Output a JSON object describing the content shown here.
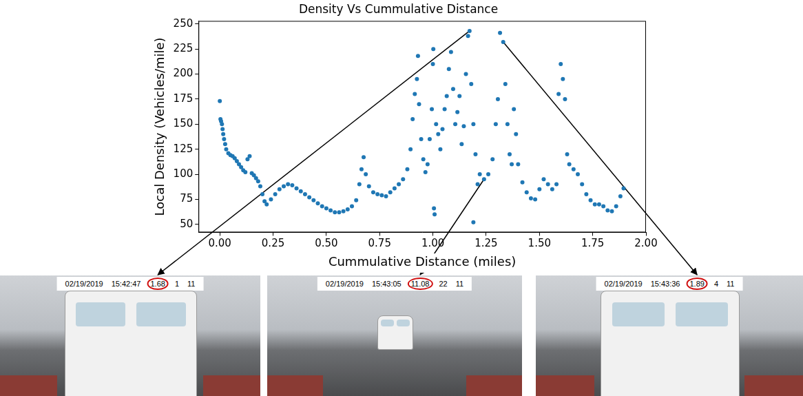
{
  "chart_data": {
    "type": "scatter",
    "title": "Density Vs Cummulative Distance",
    "x_label": "Cummulative Distance (miles)",
    "y_label": "Local Density (Vehicles/mile)",
    "color": "#1f77b4",
    "marker": "circle",
    "grid": false,
    "xlim": [
      -0.1,
      2.0
    ],
    "ylim": [
      42,
      253
    ],
    "xticks": [
      {
        "value": 0,
        "label": "0.00"
      },
      {
        "value": 0.25,
        "label": "0.25"
      },
      {
        "value": 0.5,
        "label": "0.50"
      },
      {
        "value": 0.75,
        "label": "0.75"
      },
      {
        "value": 1,
        "label": "1.00"
      },
      {
        "value": 1.25,
        "label": "1.25"
      },
      {
        "value": 1.5,
        "label": "1.50"
      },
      {
        "value": 1.75,
        "label": "1.75"
      },
      {
        "value": 2,
        "label": "2.00"
      }
    ],
    "yticks": [
      50,
      75,
      100,
      125,
      150,
      175,
      200,
      225,
      250
    ],
    "x": [
      0.0,
      0.003,
      0.006,
      0.01,
      0.013,
      0.016,
      0.02,
      0.025,
      0.03,
      0.04,
      0.05,
      0.06,
      0.07,
      0.08,
      0.09,
      0.1,
      0.11,
      0.12,
      0.13,
      0.14,
      0.15,
      0.16,
      0.17,
      0.18,
      0.19,
      0.2,
      0.21,
      0.22,
      0.24,
      0.26,
      0.28,
      0.3,
      0.32,
      0.34,
      0.36,
      0.38,
      0.4,
      0.42,
      0.44,
      0.46,
      0.48,
      0.5,
      0.52,
      0.54,
      0.56,
      0.58,
      0.6,
      0.62,
      0.64,
      0.655,
      0.665,
      0.675,
      0.685,
      0.7,
      0.72,
      0.74,
      0.76,
      0.78,
      0.8,
      0.82,
      0.84,
      0.86,
      0.88,
      0.895,
      0.905,
      0.915,
      0.925,
      0.93,
      0.935,
      0.945,
      0.955,
      0.965,
      0.975,
      0.985,
      0.995,
      1.0,
      1.002,
      1.005,
      1.008,
      1.015,
      1.025,
      1.035,
      1.045,
      1.055,
      1.065,
      1.075,
      1.085,
      1.095,
      1.105,
      1.115,
      1.125,
      1.135,
      1.145,
      1.155,
      1.165,
      1.172,
      1.18,
      1.19,
      1.19,
      1.2,
      1.21,
      1.22,
      1.24,
      1.26,
      1.28,
      1.295,
      1.305,
      1.315,
      1.33,
      1.34,
      1.35,
      1.36,
      1.37,
      1.38,
      1.39,
      1.4,
      1.42,
      1.44,
      1.46,
      1.48,
      1.5,
      1.52,
      1.54,
      1.56,
      1.58,
      1.59,
      1.6,
      1.61,
      1.62,
      1.63,
      1.64,
      1.66,
      1.68,
      1.7,
      1.72,
      1.74,
      1.76,
      1.78,
      1.8,
      1.82,
      1.84,
      1.86,
      1.88,
      1.895
    ],
    "values": [
      173,
      155,
      153,
      150,
      145,
      140,
      135,
      130,
      125,
      121,
      119,
      118,
      116,
      113,
      110,
      107,
      104,
      102,
      115,
      118,
      101,
      99,
      96,
      93,
      88,
      80,
      73,
      70,
      75,
      80,
      85,
      88,
      90,
      89,
      86,
      83,
      80,
      77,
      74,
      71,
      68,
      66,
      64,
      62,
      62,
      63,
      65,
      68,
      74,
      90,
      105,
      117,
      100,
      88,
      82,
      80,
      79,
      78,
      82,
      86,
      90,
      95,
      105,
      125,
      155,
      180,
      195,
      218,
      170,
      135,
      115,
      102,
      110,
      135,
      165,
      210,
      225,
      66,
      60,
      150,
      140,
      125,
      145,
      165,
      178,
      205,
      222,
      185,
      150,
      162,
      178,
      130,
      148,
      200,
      238,
      243,
      190,
      52,
      150,
      120,
      90,
      100,
      95,
      100,
      115,
      150,
      175,
      241,
      232,
      190,
      150,
      120,
      110,
      165,
      140,
      110,
      92,
      82,
      76,
      75,
      85,
      95,
      90,
      85,
      90,
      180,
      210,
      195,
      175,
      120,
      110,
      105,
      100,
      90,
      80,
      74,
      70,
      70,
      68,
      64,
      63,
      68,
      78,
      86
    ],
    "annotations": [
      {
        "x": 1.172,
        "y": 243,
        "text": [
          "02/19/2019",
          "15:42:47",
          "1.68",
          "1",
          "11"
        ]
      },
      {
        "x": 1.24,
        "y": 95,
        "text": [
          "02/19/2019",
          "15:43:05",
          "11.08",
          "22",
          "11"
        ]
      },
      {
        "x": 1.33,
        "y": 232,
        "text": [
          "02/19/2019",
          "15:43:36",
          "1.89",
          "4",
          "11"
        ]
      }
    ]
  }
}
